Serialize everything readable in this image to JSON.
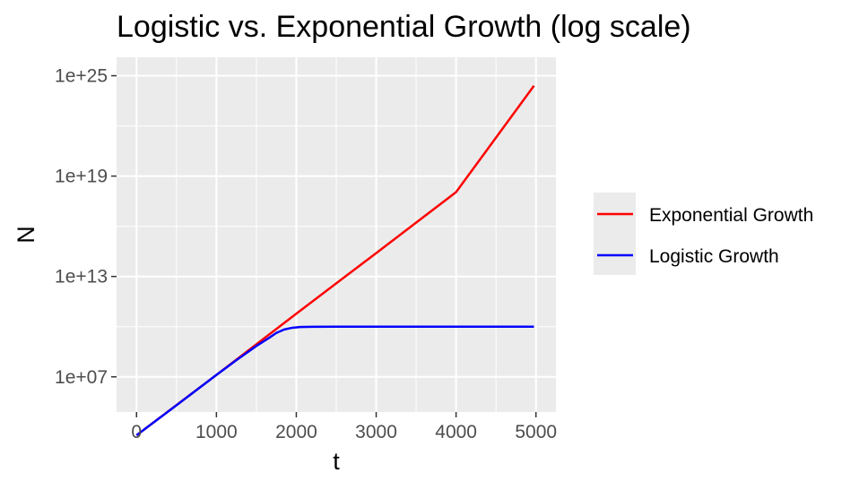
{
  "chart_data": {
    "type": "line",
    "title": "Logistic vs. Exponential Growth (log scale)",
    "xlabel": "t",
    "ylabel": "N",
    "xlim": [
      -250,
      5250
    ],
    "ylim_log10": [
      4.9,
      26.1
    ],
    "y_scale": "log10",
    "x_ticks": [
      0,
      1000,
      2000,
      3000,
      4000,
      5000
    ],
    "x_tick_labels": [
      "0",
      "1000",
      "2000",
      "3000",
      "4000",
      "5000"
    ],
    "y_ticks": [
      10000000.0,
      10000000000000.0,
      1e+19,
      1e+25
    ],
    "y_tick_labels": [
      "1e+07",
      "1e+13",
      "1e+19",
      "1e+25"
    ],
    "grid": true,
    "legend_position": "right",
    "series": [
      {
        "name": "Exponential Growth",
        "color": "#ff0000",
        "x": [
          0,
          1000,
          2000,
          3000,
          4000,
          4975
        ],
        "y": [
          3200.0,
          13000000.0,
          60000000000.0,
          250000000000000.0,
          1.1e+18,
          2.5e+24
        ]
      },
      {
        "name": "Logistic Growth",
        "color": "#0000ff",
        "x": [
          0,
          500,
          1000,
          1250,
          1500,
          1650,
          1750,
          1850,
          1950,
          2050,
          2200,
          2500,
          3000,
          4000,
          4975
        ],
        "y": [
          3200.0,
          200000.0,
          13000000.0,
          100000000.0,
          700000000.0,
          2000000000.0,
          4200000000.0,
          6800000000.0,
          8600000000.0,
          9500000000.0,
          9900000000.0,
          10000000000.0,
          10000000000.0,
          10000000000.0,
          10000000000.0
        ]
      }
    ]
  }
}
